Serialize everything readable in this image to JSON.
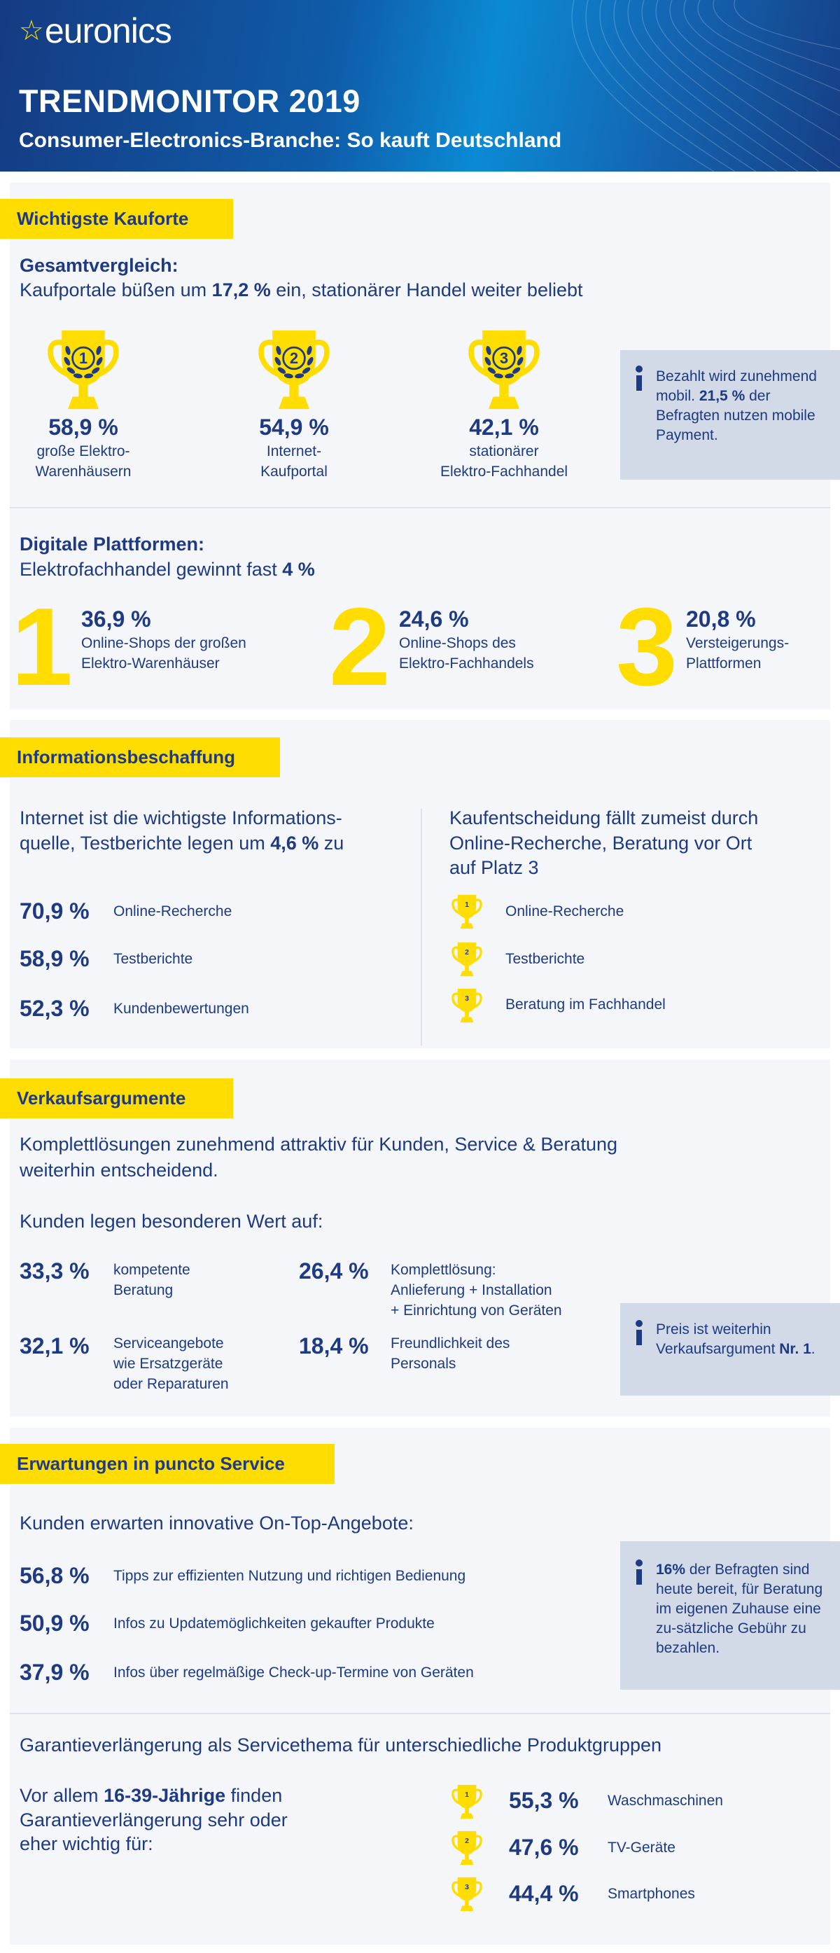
{
  "header": {
    "logo_text": "euronics",
    "title": "TRENDMONITOR 2019",
    "subtitle": "Consumer-Electronics-Branche: So kauft Deutschland"
  },
  "kauforte": {
    "tag": "Wichtigste Kauforte",
    "heading_bold": "Gesamtvergleich:",
    "line_pre": "Kaufportale büßen um ",
    "line_bold": "17,2 %",
    "line_post": " ein, stationärer Handel weiter beliebt",
    "ranks": [
      {
        "rank": "1",
        "value": "58,9 %",
        "label_1": "große Elektro-",
        "label_2": "Warenhäusern"
      },
      {
        "rank": "2",
        "value": "54,9 %",
        "label_1": "Internet-",
        "label_2": "Kaufportal"
      },
      {
        "rank": "3",
        "value": "42,1 %",
        "label_1": "stationärer",
        "label_2": "Elektro-Fachhandel"
      }
    ],
    "info": {
      "pre": "Bezahlt wird zunehmend mobil. ",
      "bold": "21,5 %",
      "post": " der Befragten nutzen mobile Payment."
    },
    "digital": {
      "heading_bold": "Digitale Plattformen:",
      "line_pre": "Elektrofachhandel gewinnt fast ",
      "line_bold": "4 %",
      "items": [
        {
          "rank": "1",
          "value": "36,9 %",
          "label_1": "Online-Shops der großen",
          "label_2": "Elektro-Warenhäuser"
        },
        {
          "rank": "2",
          "value": "24,6 %",
          "label_1": "Online-Shops des",
          "label_2": "Elektro-Fachhandels"
        },
        {
          "rank": "3",
          "value": "20,8 %",
          "label_1": "Versteigerungs-",
          "label_2": "Plattformen"
        }
      ]
    }
  },
  "info_beschaffung": {
    "tag": "Informationsbeschaffung",
    "left_line1": "Internet ist die wichtigste Informations-",
    "left_line2_pre": "quelle, Testberichte legen um ",
    "left_line2_bold": "4,6 %",
    "left_line2_post": " zu",
    "stats": [
      {
        "value": "70,9 %",
        "label": "Online-Recherche"
      },
      {
        "value": "58,9 %",
        "label": "Testberichte"
      },
      {
        "value": "52,3 %",
        "label": "Kundenbewertungen"
      }
    ],
    "right_line1": "Kaufentscheidung fällt zumeist durch",
    "right_line2": "Online-Recherche, Beratung vor Ort",
    "right_line3": "auf Platz 3",
    "ranking": [
      {
        "rank": "1",
        "label": "Online-Recherche"
      },
      {
        "rank": "2",
        "label": "Testberichte"
      },
      {
        "rank": "3",
        "label": "Beratung im Fachhandel"
      }
    ]
  },
  "verkauf": {
    "tag": "Verkaufsargumente",
    "line1": "Komplettlösungen zunehmend attraktiv für Kunden, Service & Beratung",
    "line2": "weiterhin entscheidend.",
    "subheading": "Kunden legen besonderen Wert auf:",
    "stats": [
      {
        "value": "33,3 %",
        "lines": [
          "kompetente",
          "Beratung"
        ]
      },
      {
        "value": "26,4 %",
        "lines": [
          "Komplettlösung:",
          "Anlieferung + Installation",
          "+ Einrichtung von Geräten"
        ]
      },
      {
        "value": "32,1 %",
        "lines": [
          "Serviceangebote",
          "wie Ersatzgeräte",
          "oder Reparaturen"
        ]
      },
      {
        "value": "18,4 %",
        "lines": [
          "Freundlichkeit des",
          "Personals"
        ]
      }
    ],
    "info": {
      "pre": "Preis ist weiterhin Verkaufsargument ",
      "bold": "Nr. 1",
      "post": "."
    }
  },
  "service": {
    "tag": "Erwartungen in puncto Service",
    "subheading": "Kunden erwarten innovative On-Top-Angebote:",
    "stats": [
      {
        "value": "56,8 %",
        "label": "Tipps zur effizienten Nutzung und richtigen Bedienung"
      },
      {
        "value": "50,9 %",
        "label": "Infos zu Updatemöglichkeiten gekaufter Produkte"
      },
      {
        "value": "37,9 %",
        "label": "Infos über regelmäßige Check-up-Termine von Geräten"
      }
    ],
    "info": {
      "bold": "16%",
      "post": " der Befragten sind heute bereit, für Beratung im eigenen Zuhause eine zu-sätzliche Gebühr zu bezahlen."
    },
    "garantie_heading": "Garantieverlängerung als Servicethema für unterschiedliche Produktgruppen",
    "garantie_pre": "Vor allem ",
    "garantie_bold": "16-39-Jährige",
    "garantie_post": " finden",
    "garantie_line2": "Garantieverlängerung sehr oder",
    "garantie_line3": "eher wichtig für:",
    "ranking": [
      {
        "rank": "1",
        "value": "55,3 %",
        "label": "Waschmaschinen"
      },
      {
        "rank": "2",
        "value": "47,6 %",
        "label": "TV-Geräte"
      },
      {
        "rank": "3",
        "value": "44,4 %",
        "label": "Smartphones"
      }
    ]
  },
  "colors": {
    "navy": "#1d3a82",
    "yellow": "#ffdd00",
    "panel": "#f4f6fa",
    "info": "#d1dae6"
  }
}
